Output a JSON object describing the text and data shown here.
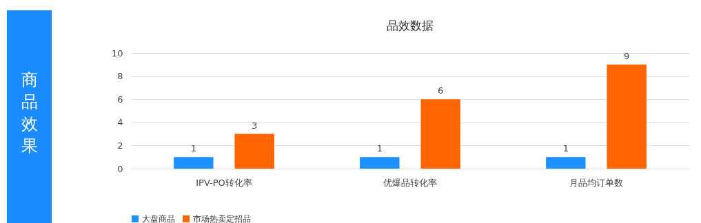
{
  "chart_data": {
    "type": "bar",
    "title": "品效数据",
    "annotations": [
      "商品效果"
    ],
    "categories": [
      "IPV-PO转化率",
      "优爆品转化率",
      "月品均订单数"
    ],
    "series": [
      {
        "name": "大盘商品",
        "color": "#1e90ff",
        "values": [
          1,
          1,
          1
        ]
      },
      {
        "name": "市场热卖定招品",
        "color": "#ff6600",
        "values": [
          3,
          6,
          9
        ]
      }
    ],
    "ylim": [
      0,
      10
    ],
    "yticks": [
      0,
      2,
      4,
      6,
      8,
      10
    ],
    "grid": "y",
    "legend": "bottom",
    "data_labels": true
  }
}
